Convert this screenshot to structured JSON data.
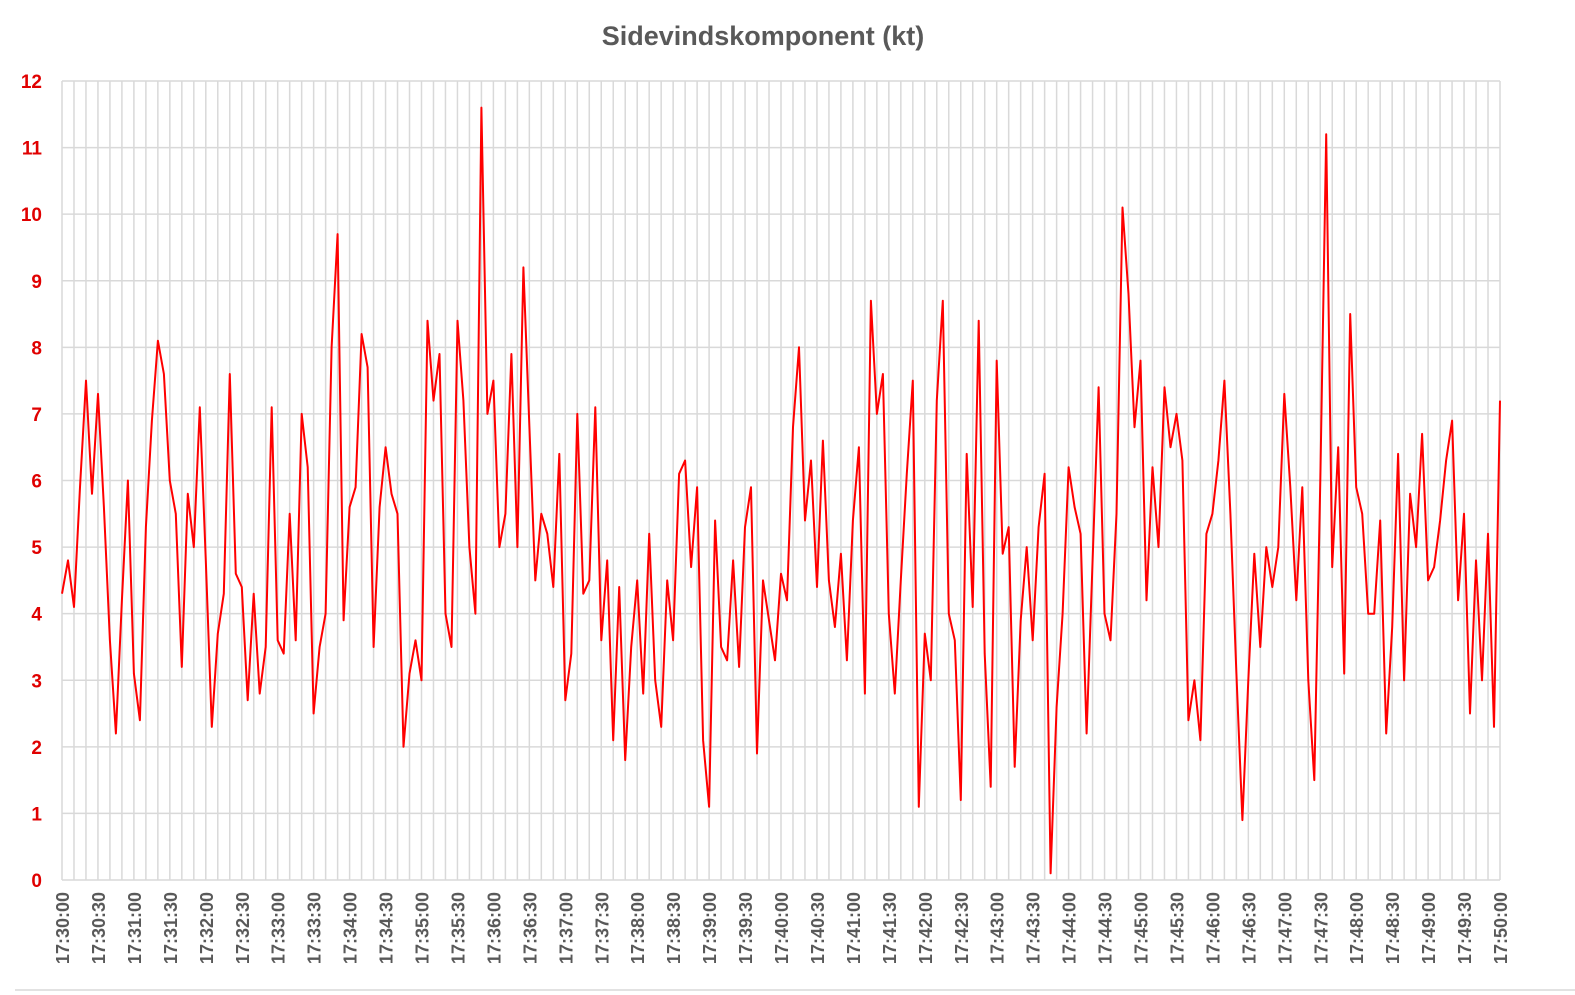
{
  "chart_data": {
    "type": "line",
    "title": "Sidevindskomponent (kt)",
    "xlabel": "",
    "ylabel": "",
    "ylim": [
      0,
      12
    ],
    "yticks": [
      "0",
      "1",
      "2",
      "3",
      "4",
      "5",
      "6",
      "7",
      "8",
      "9",
      "10",
      "11",
      "12"
    ],
    "xticks": [
      "17:30:00",
      "17:30:30",
      "17:31:00",
      "17:31:30",
      "17:32:00",
      "17:32:30",
      "17:33:00",
      "17:33:30",
      "17:34:00",
      "17:34:30",
      "17:35:00",
      "17:35:30",
      "17:36:00",
      "17:36:30",
      "17:37:00",
      "17:37:30",
      "17:38:00",
      "17:38:30",
      "17:39:00",
      "17:39:30",
      "17:40:00",
      "17:40:30",
      "17:41:00",
      "17:41:30",
      "17:42:00",
      "17:42:30",
      "17:43:00",
      "17:43:30",
      "17:44:00",
      "17:44:30",
      "17:45:00",
      "17:45:30",
      "17:46:00",
      "17:46:30",
      "17:47:00",
      "17:47:30",
      "17:48:00",
      "17:48:30",
      "17:49:00",
      "17:49:30",
      "17:50:00"
    ],
    "x_range_seconds": [
      0,
      1200
    ],
    "x_grid_step_seconds": 10,
    "grid": true,
    "series": [
      {
        "name": "Sidevindskomponent",
        "color": "#ff0000",
        "x_step_seconds": 5,
        "values": [
          4.3,
          4.8,
          4.1,
          5.9,
          7.5,
          5.8,
          7.3,
          5.6,
          3.6,
          2.2,
          4.2,
          6.0,
          3.1,
          2.4,
          5.3,
          6.9,
          8.1,
          7.6,
          6.0,
          5.5,
          3.2,
          5.8,
          5.0,
          7.1,
          4.8,
          2.3,
          3.7,
          4.3,
          7.6,
          4.6,
          4.4,
          2.7,
          4.3,
          2.8,
          3.5,
          7.1,
          3.6,
          3.4,
          5.5,
          3.6,
          7.0,
          6.2,
          2.5,
          3.5,
          4.0,
          8.0,
          9.7,
          3.9,
          5.6,
          5.9,
          8.2,
          7.7,
          3.5,
          5.6,
          6.5,
          5.8,
          5.5,
          2.0,
          3.1,
          3.6,
          3.0,
          8.4,
          7.2,
          7.9,
          4.0,
          3.5,
          8.4,
          7.2,
          5.0,
          4.0,
          11.6,
          7.0,
          7.5,
          5.0,
          5.5,
          7.9,
          5.0,
          9.2,
          6.8,
          4.5,
          5.5,
          5.2,
          4.4,
          6.4,
          2.7,
          3.4,
          7.0,
          4.3,
          4.5,
          7.1,
          3.6,
          4.8,
          2.1,
          4.4,
          1.8,
          3.5,
          4.5,
          2.8,
          5.2,
          3.0,
          2.3,
          4.5,
          3.6,
          6.1,
          6.3,
          4.7,
          5.9,
          2.1,
          1.1,
          5.4,
          3.5,
          3.3,
          4.8,
          3.2,
          5.3,
          5.9,
          1.9,
          4.5,
          3.9,
          3.3,
          4.6,
          4.2,
          6.8,
          8.0,
          5.4,
          6.3,
          4.4,
          6.6,
          4.5,
          3.8,
          4.9,
          3.3,
          5.4,
          6.5,
          2.8,
          8.7,
          7.0,
          7.6,
          4.0,
          2.8,
          4.5,
          6.1,
          7.5,
          1.1,
          3.7,
          3.0,
          7.2,
          8.7,
          4.0,
          3.6,
          1.2,
          6.4,
          4.1,
          8.4,
          3.4,
          1.4,
          7.8,
          4.9,
          5.3,
          1.7,
          3.9,
          5.0,
          3.6,
          5.3,
          6.1,
          0.1,
          2.6,
          4.0,
          6.2,
          5.6,
          5.2,
          2.2,
          4.8,
          7.4,
          4.0,
          3.6,
          5.5,
          10.1,
          8.8,
          6.8,
          7.8,
          4.2,
          6.2,
          5.0,
          7.4,
          6.5,
          7.0,
          6.3,
          2.4,
          3.0,
          2.1,
          5.2,
          5.5,
          6.3,
          7.5,
          5.5,
          3.1,
          0.9,
          3.0,
          4.9,
          3.5,
          5.0,
          4.4,
          5.0,
          7.3,
          5.9,
          4.2,
          5.9,
          3.0,
          1.5,
          6.0,
          11.2,
          4.7,
          6.5,
          3.1,
          8.5,
          5.9,
          5.5,
          4.0,
          4.0,
          5.4,
          2.2,
          3.8,
          6.4,
          3.0,
          5.8,
          5.0,
          6.7,
          4.5,
          4.7,
          5.4,
          6.3,
          6.9,
          4.2,
          5.5,
          2.5,
          4.8,
          3.0,
          5.2,
          2.3,
          7.2
        ]
      }
    ]
  }
}
